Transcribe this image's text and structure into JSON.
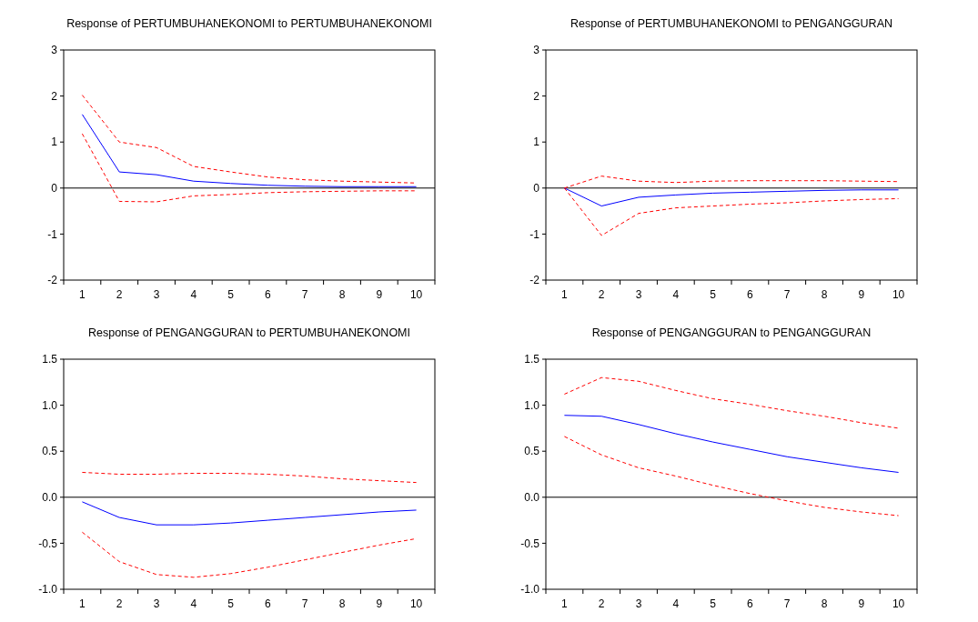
{
  "chart_data": [
    {
      "type": "line",
      "title": "Response of  PERTUMBUHANEKONOMI to PERTUMBUHANEKONOMI",
      "categories": [
        "1",
        "2",
        "3",
        "4",
        "5",
        "6",
        "7",
        "8",
        "9",
        "10"
      ],
      "ylim": [
        -2,
        3
      ],
      "yticks": [
        -2,
        -1,
        0,
        1,
        2,
        3
      ],
      "ref_lines": [
        {
          "axis": "y",
          "value": 0,
          "color": "#000000"
        }
      ],
      "grid": false,
      "series": [
        {
          "color": "#0000ff",
          "line_style": "solid",
          "values": [
            1.6,
            0.35,
            0.29,
            0.15,
            0.1,
            0.06,
            0.04,
            0.03,
            0.03,
            0.03
          ]
        },
        {
          "color": "#ff0000",
          "line_style": "dashed",
          "values": [
            2.02,
            1.0,
            0.88,
            0.47,
            0.35,
            0.24,
            0.18,
            0.15,
            0.13,
            0.11
          ]
        },
        {
          "color": "#ff0000",
          "line_style": "dashed",
          "values": [
            1.18,
            -0.29,
            -0.3,
            -0.17,
            -0.14,
            -0.1,
            -0.08,
            -0.07,
            -0.06,
            -0.06
          ]
        }
      ]
    },
    {
      "type": "line",
      "title": "Response of  PERTUMBUHANEKONOMI to PENGANGGURAN",
      "categories": [
        "1",
        "2",
        "3",
        "4",
        "5",
        "6",
        "7",
        "8",
        "9",
        "10"
      ],
      "ylim": [
        -2,
        3
      ],
      "yticks": [
        -2,
        -1,
        0,
        1,
        2,
        3
      ],
      "ref_lines": [
        {
          "axis": "y",
          "value": 0,
          "color": "#000000"
        }
      ],
      "grid": false,
      "series": [
        {
          "color": "#0000ff",
          "line_style": "solid",
          "values": [
            0,
            -0.39,
            -0.2,
            -0.15,
            -0.11,
            -0.09,
            -0.07,
            -0.05,
            -0.04,
            -0.04
          ]
        },
        {
          "color": "#ff0000",
          "line_style": "dashed",
          "values": [
            0,
            0.26,
            0.15,
            0.12,
            0.15,
            0.16,
            0.16,
            0.16,
            0.15,
            0.14
          ]
        },
        {
          "color": "#ff0000",
          "line_style": "dashed",
          "values": [
            0,
            -1.03,
            -0.55,
            -0.43,
            -0.39,
            -0.35,
            -0.32,
            -0.28,
            -0.25,
            -0.23
          ]
        }
      ]
    },
    {
      "type": "line",
      "title": "Response of  PENGANGGURAN to PERTUMBUHANEKONOMI",
      "categories": [
        "1",
        "2",
        "3",
        "4",
        "5",
        "6",
        "7",
        "8",
        "9",
        "10"
      ],
      "ylim": [
        -1,
        1.5
      ],
      "yticks": [
        {
          "value": -1,
          "label": "-1.0"
        },
        -0.5,
        {
          "value": 0,
          "label": "0.0"
        },
        0.5,
        {
          "value": 1,
          "label": "1.0"
        },
        1.5
      ],
      "ref_lines": [
        {
          "axis": "y",
          "value": 0,
          "color": "#000000"
        }
      ],
      "grid": false,
      "series": [
        {
          "color": "#0000ff",
          "line_style": "solid",
          "values": [
            -0.05,
            -0.22,
            -0.3,
            -0.3,
            -0.28,
            -0.25,
            -0.22,
            -0.19,
            -0.16,
            -0.14
          ]
        },
        {
          "color": "#ff0000",
          "line_style": "dashed",
          "values": [
            0.27,
            0.25,
            0.25,
            0.26,
            0.26,
            0.25,
            0.23,
            0.2,
            0.18,
            0.16
          ]
        },
        {
          "color": "#ff0000",
          "line_style": "dashed",
          "values": [
            -0.38,
            -0.7,
            -0.84,
            -0.87,
            -0.83,
            -0.76,
            -0.68,
            -0.6,
            -0.52,
            -0.45
          ]
        }
      ]
    },
    {
      "type": "line",
      "title": "Response of PENGANGGURAN to PENGANGGURAN",
      "categories": [
        "1",
        "2",
        "3",
        "4",
        "5",
        "6",
        "7",
        "8",
        "9",
        "10"
      ],
      "ylim": [
        -1,
        1.5
      ],
      "yticks": [
        {
          "value": -1,
          "label": "-1.0"
        },
        -0.5,
        {
          "value": 0,
          "label": "0.0"
        },
        0.5,
        {
          "value": 1,
          "label": "1.0"
        },
        1.5
      ],
      "ref_lines": [
        {
          "axis": "y",
          "value": 0,
          "color": "#000000"
        }
      ],
      "grid": false,
      "series": [
        {
          "color": "#0000ff",
          "line_style": "solid",
          "values": [
            0.89,
            0.88,
            0.79,
            0.69,
            0.6,
            0.52,
            0.44,
            0.38,
            0.32,
            0.27
          ]
        },
        {
          "color": "#ff0000",
          "line_style": "dashed",
          "values": [
            1.12,
            1.3,
            1.26,
            1.16,
            1.07,
            1.01,
            0.94,
            0.88,
            0.81,
            0.75
          ]
        },
        {
          "color": "#ff0000",
          "line_style": "dashed",
          "values": [
            0.66,
            0.46,
            0.32,
            0.23,
            0.13,
            0.04,
            -0.04,
            -0.11,
            -0.16,
            -0.2
          ]
        }
      ]
    }
  ]
}
